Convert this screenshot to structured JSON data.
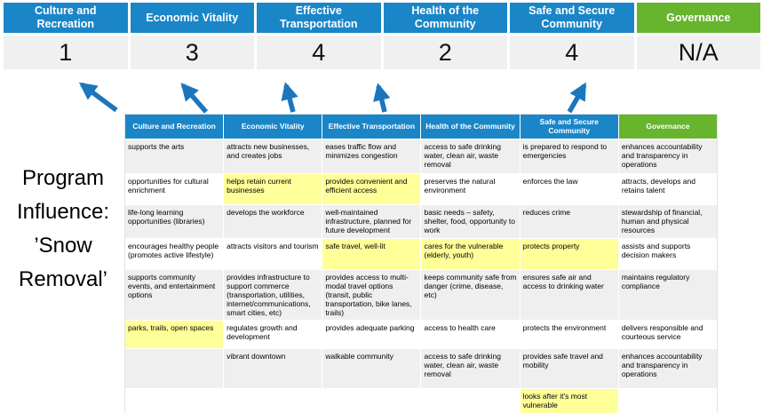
{
  "title": "Program Influence: ’Snow Removal’",
  "summary": {
    "categories": [
      {
        "label": "Culture and Recreation",
        "score": "1"
      },
      {
        "label": "Economic Vitality",
        "score": "3"
      },
      {
        "label": "Effective Transportation",
        "score": "4"
      },
      {
        "label": "Health of the Community",
        "score": "2"
      },
      {
        "label": "Safe and Secure Community",
        "score": "4"
      },
      {
        "label": "Governance",
        "score": "N/A"
      }
    ]
  },
  "colors": {
    "header_blue": "#1a86c8",
    "header_green": "#67b42d",
    "highlight_yellow": "#ffff99",
    "band_gray": "#efefef",
    "score_bg": "#f0f0f0",
    "arrow_blue": "#1c76bd"
  },
  "matrix": {
    "headers": [
      "Culture and Recreation",
      "Economic Vitality",
      "Effective Transportation",
      "Health of the Community",
      "Safe and Secure Community",
      "Governance"
    ],
    "rows": [
      [
        {
          "t": "supports the arts",
          "h": false
        },
        {
          "t": "attracts new businesses, and creates jobs",
          "h": false
        },
        {
          "t": "eases traffic flow and minimizes congestion",
          "h": true
        },
        {
          "t": "access to safe drinking water, clean air, waste removal",
          "h": false
        },
        {
          "t": "is prepared to respond to emergencies",
          "h": true
        },
        {
          "t": "enhances accountability and transparency in operations",
          "h": false
        }
      ],
      [
        {
          "t": "opportunities for cultural enrichment",
          "h": false
        },
        {
          "t": "helps retain current businesses",
          "h": true
        },
        {
          "t": "provides convenient and efficient access",
          "h": true
        },
        {
          "t": "preserves the natural environment",
          "h": false
        },
        {
          "t": "enforces the law",
          "h": false
        },
        {
          "t": "attracts, develops and retains talent",
          "h": false
        }
      ],
      [
        {
          "t": "life-long learning opportunities (libraries)",
          "h": false
        },
        {
          "t": "develops the workforce",
          "h": false
        },
        {
          "t": "well-maintained infrastructure, planned for future development",
          "h": false
        },
        {
          "t": "basic needs – safety, shelter, food, opportunity to work",
          "h": true
        },
        {
          "t": "reduces crime",
          "h": false
        },
        {
          "t": "stewardship of financial, human and physical resources",
          "h": false
        }
      ],
      [
        {
          "t": "encourages healthy people (promotes active lifestyle)",
          "h": false
        },
        {
          "t": "attracts visitors and tourism",
          "h": false
        },
        {
          "t": "safe travel, well-lit",
          "h": true
        },
        {
          "t": "cares for the vulnerable (elderly, youth)",
          "h": true
        },
        {
          "t": "protects property",
          "h": true
        },
        {
          "t": "assists and supports decision makers",
          "h": false
        }
      ],
      [
        {
          "t": "supports community events, and entertainment options",
          "h": false
        },
        {
          "t": "provides infrastructure to support commerce (transportation, utilities, internet/communications, smart cities, etc)",
          "h": true
        },
        {
          "t": "provides access to multi-modal travel options (transit, public transportation, bike lanes, trails)",
          "h": true
        },
        {
          "t": "keeps community safe from danger (crime, disease, etc)",
          "h": true
        },
        {
          "t": "ensures safe air and access to drinking water",
          "h": false
        },
        {
          "t": "maintains regulatory compliance",
          "h": false
        }
      ],
      [
        {
          "t": "parks, trails, open spaces",
          "h": true
        },
        {
          "t": "regulates growth and development",
          "h": false
        },
        {
          "t": "provides adequate parking",
          "h": false
        },
        {
          "t": "access to health care",
          "h": false
        },
        {
          "t": "protects the environment",
          "h": false
        },
        {
          "t": "delivers responsible and courteous service",
          "h": false
        }
      ],
      [
        {
          "t": "",
          "h": false
        },
        {
          "t": "vibrant downtown",
          "h": false
        },
        {
          "t": "walkable community",
          "h": false
        },
        {
          "t": "access to safe drinking water, clean air, waste removal",
          "h": false
        },
        {
          "t": "provides safe travel and mobility",
          "h": true
        },
        {
          "t": "enhances accountability and transparency in operations",
          "h": false
        }
      ],
      [
        {
          "t": "",
          "h": false
        },
        {
          "t": "",
          "h": false
        },
        {
          "t": "",
          "h": false
        },
        {
          "t": "",
          "h": false
        },
        {
          "t": "looks after it's most vulnerable",
          "h": true
        },
        {
          "t": "",
          "h": false
        }
      ]
    ]
  }
}
